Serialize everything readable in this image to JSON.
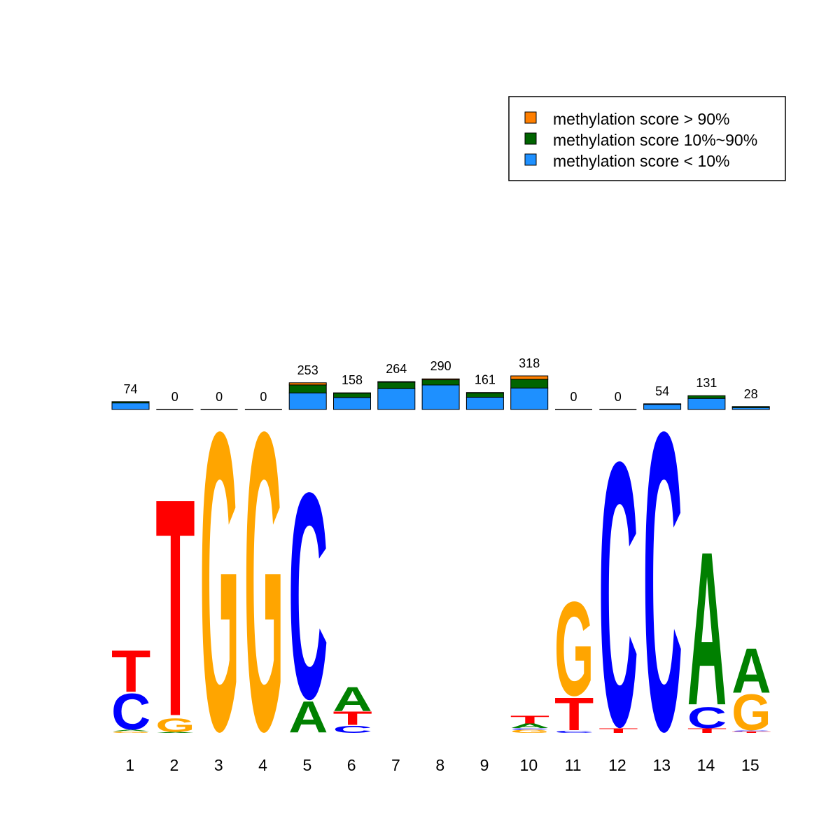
{
  "chart_data": {
    "type": "bar",
    "description_type": "sequence-logo-with-stacked-methylation-bars",
    "positions": [
      "1",
      "2",
      "3",
      "4",
      "5",
      "6",
      "7",
      "8",
      "9",
      "10",
      "11",
      "12",
      "13",
      "14",
      "15"
    ],
    "methylation_counts": [
      74,
      0,
      0,
      0,
      253,
      158,
      264,
      290,
      161,
      318,
      0,
      0,
      54,
      131,
      28
    ],
    "methylation_fractions": {
      "low_lt10": [
        0.84,
        0,
        0,
        0,
        0.62,
        0.72,
        0.75,
        0.8,
        0.72,
        0.64,
        0,
        0,
        0.9,
        0.8,
        0.65
      ],
      "mid_10_90": [
        0.16,
        0,
        0,
        0,
        0.3,
        0.26,
        0.23,
        0.17,
        0.26,
        0.26,
        0,
        0,
        0.1,
        0.2,
        0.35
      ],
      "high_gt90": [
        0.0,
        0,
        0,
        0,
        0.08,
        0.02,
        0.02,
        0.03,
        0.02,
        0.1,
        0,
        0,
        0.0,
        0.0,
        0.0
      ]
    },
    "legend": [
      {
        "key": "high",
        "label": "methylation score > 90%",
        "color": "#ff7f00"
      },
      {
        "key": "mid",
        "label": "methylation score 10%~90%",
        "color": "#006400"
      },
      {
        "key": "low",
        "label": "methylation score < 10%",
        "color": "#1e90ff"
      }
    ],
    "legend_position": "top-right",
    "base_colors": {
      "A": "#008000",
      "C": "#0000ff",
      "G": "#ffa500",
      "T": "#ff0000"
    },
    "logo_ylim": [
      0,
      2
    ],
    "logo": [
      [
        {
          "b": "G",
          "h": 0.01
        },
        {
          "b": "A",
          "h": 0.01
        },
        {
          "b": "C",
          "h": 0.24
        },
        {
          "b": "T",
          "h": 0.28
        }
      ],
      [
        {
          "b": "A",
          "h": 0.005
        },
        {
          "b": "G",
          "h": 0.09
        },
        {
          "b": "T",
          "h": 1.46
        }
      ],
      [
        {
          "b": "G",
          "h": 2.0
        }
      ],
      [
        {
          "b": "G",
          "h": 2.0
        }
      ],
      [
        {
          "b": "A",
          "h": 0.21
        },
        {
          "b": "C",
          "h": 1.38
        }
      ],
      [
        {
          "b": "C",
          "h": 0.05
        },
        {
          "b": "T",
          "h": 0.09
        },
        {
          "b": "A",
          "h": 0.16
        }
      ],
      [],
      [],
      [],
      [
        {
          "b": "G",
          "h": 0.02
        },
        {
          "b": "C",
          "h": 0.01
        },
        {
          "b": "A",
          "h": 0.03
        },
        {
          "b": "T",
          "h": 0.05
        }
      ],
      [
        {
          "b": "C",
          "h": 0.015
        },
        {
          "b": "T",
          "h": 0.22
        },
        {
          "b": "G",
          "h": 0.63
        }
      ],
      [
        {
          "b": "T",
          "h": 0.03
        },
        {
          "b": "C",
          "h": 1.77
        }
      ],
      [
        {
          "b": "C",
          "h": 2.0
        }
      ],
      [
        {
          "b": "T",
          "h": 0.03
        },
        {
          "b": "C",
          "h": 0.14
        },
        {
          "b": "A",
          "h": 1.03
        }
      ],
      [
        {
          "b": "T",
          "h": 0.01
        },
        {
          "b": "C",
          "h": 0.005
        },
        {
          "b": "G",
          "h": 0.24
        },
        {
          "b": "A",
          "h": 0.3
        }
      ]
    ]
  }
}
